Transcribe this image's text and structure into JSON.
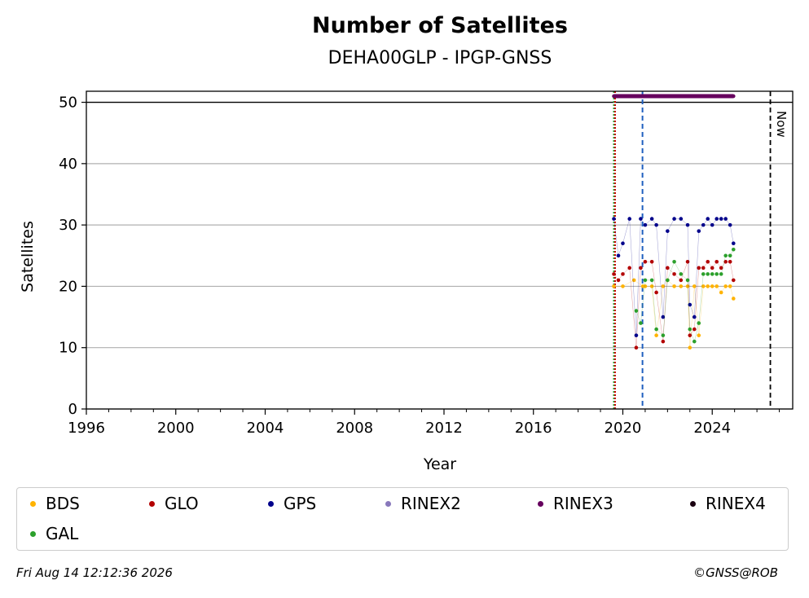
{
  "chart_data": {
    "type": "scatter",
    "title": "Number of Satellites",
    "subtitle": "DEHA00GLP - IPGP-GNSS",
    "xlabel": "Year",
    "ylabel": "Satellites",
    "xlim": [
      1996,
      2027.6
    ],
    "ylim": [
      0,
      51.8
    ],
    "xticks": [
      "1996",
      "2000",
      "2004",
      "2008",
      "2012",
      "2016",
      "2020",
      "2024"
    ],
    "yticks": [
      "0",
      "10",
      "20",
      "30",
      "40",
      "50"
    ],
    "grid": "horizontal",
    "legend_position": "bottom",
    "now_label": "Now",
    "now_year": 2026.6,
    "reference_lines": [
      {
        "year": 2019.6,
        "color": "#2ca02c",
        "style": "dotted"
      },
      {
        "year": 2019.6,
        "color": "#cc0000",
        "style": "dotted"
      },
      {
        "year": 2020.88,
        "color": "#1f5fbf",
        "style": "dashed"
      }
    ],
    "series": [
      {
        "name": "BDS",
        "color": "#ffb300",
        "x": [
          2019.6,
          2020.0,
          2020.5,
          2020.9,
          2021.0,
          2021.3,
          2021.5,
          2021.8,
          2022.0,
          2022.3,
          2022.6,
          2022.9,
          2023.0,
          2023.2,
          2023.4,
          2023.6,
          2023.8,
          2024.0,
          2024.2,
          2024.4,
          2024.6,
          2024.8,
          2024.95
        ],
        "y": [
          20,
          20,
          21,
          20,
          20,
          20,
          12,
          20,
          21,
          20,
          20,
          20,
          10,
          20,
          12,
          20,
          20,
          20,
          20,
          19,
          20,
          20,
          18
        ]
      },
      {
        "name": "GLO",
        "color": "#b30000",
        "x": [
          2019.6,
          2019.8,
          2020.0,
          2020.3,
          2020.6,
          2020.8,
          2021.0,
          2021.3,
          2021.5,
          2021.8,
          2022.0,
          2022.3,
          2022.6,
          2022.9,
          2023.0,
          2023.2,
          2023.4,
          2023.6,
          2023.8,
          2024.0,
          2024.2,
          2024.4,
          2024.6,
          2024.8,
          2024.95
        ],
        "y": [
          22,
          21,
          22,
          23,
          10,
          23,
          24,
          24,
          19,
          11,
          23,
          22,
          21,
          24,
          12,
          13,
          23,
          23,
          24,
          23,
          24,
          23,
          24,
          24,
          21
        ]
      },
      {
        "name": "GPS",
        "color": "#00008b",
        "x": [
          2019.6,
          2019.8,
          2020.0,
          2020.3,
          2020.6,
          2020.8,
          2021.0,
          2021.3,
          2021.5,
          2021.8,
          2022.0,
          2022.3,
          2022.6,
          2022.9,
          2023.0,
          2023.2,
          2023.4,
          2023.6,
          2023.8,
          2024.0,
          2024.2,
          2024.4,
          2024.6,
          2024.8,
          2024.95
        ],
        "y": [
          31,
          25,
          27,
          31,
          12,
          31,
          30,
          31,
          30,
          15,
          29,
          31,
          31,
          30,
          17,
          15,
          29,
          30,
          31,
          30,
          31,
          31,
          31,
          30,
          27
        ]
      },
      {
        "name": "RINEX2",
        "color": "#8878bb",
        "x": [],
        "y": []
      },
      {
        "name": "RINEX3",
        "color": "#66005e",
        "x": [
          2019.6,
          2019.9,
          2020.2,
          2020.5,
          2020.8,
          2021.1,
          2021.4,
          2021.7,
          2022.0,
          2022.3,
          2022.6,
          2022.9,
          2023.2,
          2023.5,
          2023.8,
          2024.1,
          2024.4,
          2024.7,
          2024.95
        ],
        "y": [
          51,
          51,
          51,
          51,
          51,
          51,
          51,
          51,
          51,
          51,
          51,
          51,
          51,
          51,
          51,
          51,
          51,
          51,
          51
        ]
      },
      {
        "name": "RINEX4",
        "color": "#1a0010",
        "x": [],
        "y": []
      },
      {
        "name": "GAL",
        "color": "#2ca02c",
        "x": [
          2020.6,
          2020.8,
          2021.0,
          2021.3,
          2021.5,
          2021.8,
          2022.0,
          2022.3,
          2022.6,
          2022.9,
          2023.0,
          2023.2,
          2023.4,
          2023.6,
          2023.8,
          2024.0,
          2024.2,
          2024.4,
          2024.6,
          2024.8,
          2024.95
        ],
        "y": [
          16,
          14,
          21,
          21,
          13,
          12,
          21,
          24,
          22,
          21,
          13,
          11,
          14,
          22,
          22,
          22,
          22,
          22,
          25,
          25,
          26
        ]
      }
    ]
  },
  "footer": {
    "timestamp": "Fri Aug 14 12:12:36 2026",
    "copyright": "©GNSS@ROB"
  }
}
